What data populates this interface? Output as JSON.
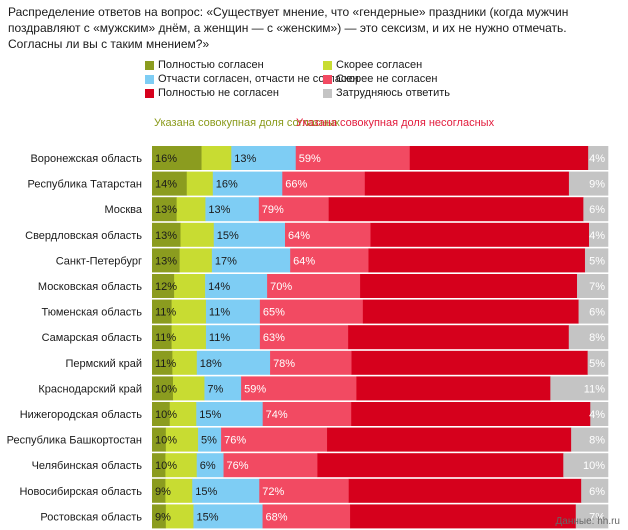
{
  "title": "Распределение ответов на вопрос: «Существует мнение, что «гендерные» праздники (когда мужчин поздравляют с «мужским» днём, а женщин — с «женским») — это сексизм, и их не нужно отмечать. Согласны ли вы с таким мнением?»",
  "notes": {
    "agree": "Указана совокупная доля согласных",
    "disagree": "Указана совокупная доля несогласных"
  },
  "source": "Данные: hh.ru",
  "colors": {
    "fully_agree": "#8b9c1f",
    "rather_agree": "#c8dc32",
    "partly": "#7ecdf4",
    "rather_disagree": "#f24a62",
    "fully_disagree": "#d6001c",
    "undecided": "#c4c4c4"
  },
  "legend": [
    {
      "name": "Полностью согласен",
      "color": "#8b9c1f"
    },
    {
      "name": "Скорее согласен",
      "color": "#c8dc32"
    },
    {
      "name": "Отчасти согласен, отчасти не согласен",
      "color": "#7ecdf4"
    },
    {
      "name": "Скорее не согласен",
      "color": "#f24a62"
    },
    {
      "name": "Полностью не согласен",
      "color": "#d6001c"
    },
    {
      "name": "Затрудняюсь ответить",
      "color": "#c4c4c4"
    }
  ],
  "chart_data": {
    "type": "bar",
    "orientation": "horizontal",
    "stacked": true,
    "categories": [
      "Воронежская область",
      "Республика Татарстан",
      "Москва",
      "Свердловская область",
      "Санкт-Петербург",
      "Московская область",
      "Тюменская область",
      "Самарская область",
      "Пермский край",
      "Краснодарский край",
      "Нижегородская область",
      "Республика Башкортостан",
      "Челябинская область",
      "Новосибирская область",
      "Ростовская область"
    ],
    "series": [
      {
        "name": "Полностью согласен",
        "values": [
          10,
          8,
          6,
          6,
          6,
          5,
          4,
          4,
          5,
          4,
          4,
          3,
          3,
          3,
          3
        ]
      },
      {
        "name": "Скорее согласен",
        "values": [
          6,
          6,
          7,
          7,
          7,
          7,
          7,
          7,
          6,
          6,
          6,
          7,
          7,
          6,
          6
        ]
      },
      {
        "name": "Отчасти согласен, отчасти не согласен",
        "values": [
          13,
          16,
          13,
          15,
          17,
          14,
          11,
          11,
          18,
          7,
          15,
          5,
          6,
          15,
          15
        ]
      },
      {
        "name": "Скорее не согласен",
        "values": [
          23,
          19,
          17,
          18,
          17,
          21,
          21,
          18,
          20,
          22,
          20,
          23,
          21,
          20,
          19
        ]
      },
      {
        "name": "Полностью не согласен",
        "values": [
          36,
          47,
          62,
          46,
          47,
          49,
          44,
          45,
          58,
          37,
          54,
          53,
          55,
          52,
          49
        ]
      },
      {
        "name": "Затрудняюсь ответить",
        "values": [
          4,
          9,
          6,
          4,
          5,
          7,
          6,
          8,
          5,
          11,
          4,
          8,
          10,
          6,
          7
        ]
      }
    ],
    "labels": {
      "agree_total": [
        "16%",
        "14%",
        "13%",
        "13%",
        "13%",
        "12%",
        "11%",
        "11%",
        "11%",
        "10%",
        "10%",
        "10%",
        "10%",
        "9%",
        "9%"
      ],
      "partly": [
        "13%",
        "16%",
        "13%",
        "15%",
        "17%",
        "14%",
        "11%",
        "11%",
        "18%",
        "7%",
        "15%",
        "5%",
        "6%",
        "15%",
        "15%"
      ],
      "disagree_total": [
        "59%",
        "66%",
        "79%",
        "64%",
        "64%",
        "70%",
        "65%",
        "63%",
        "78%",
        "59%",
        "74%",
        "76%",
        "76%",
        "72%",
        "68%"
      ],
      "undecided": [
        "4%",
        "9%",
        "6%",
        "4%",
        "5%",
        "7%",
        "6%",
        "8%",
        "5%",
        "11%",
        "4%",
        "8%",
        "10%",
        "6%",
        "7%"
      ]
    }
  }
}
